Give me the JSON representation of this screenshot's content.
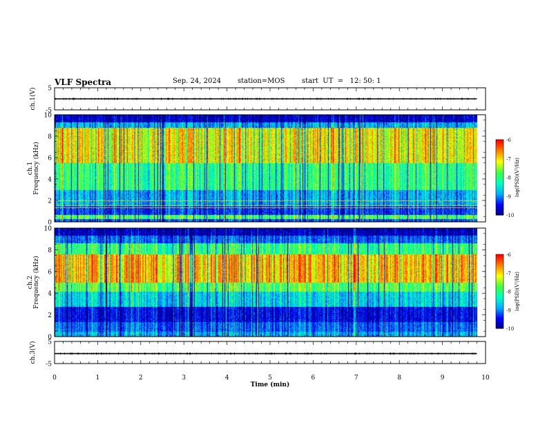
{
  "header": {
    "title": "VLF Spectra",
    "date": "Sep. 24, 2024",
    "station": "station=MOS",
    "start": "start  UT  =   12: 50: 1"
  },
  "colors": {
    "colormap": [
      "#000080",
      "#0000ff",
      "#00b0ff",
      "#00ffc0",
      "#40ff40",
      "#ffff00",
      "#ff8000",
      "#ff0000",
      "#ffffff"
    ]
  },
  "chart_data": [
    {
      "type": "line",
      "name": "ch1-voltage",
      "ylabel": "ch.1(V)",
      "ylim": [
        -5,
        5
      ],
      "yticks": [
        "5",
        "-5"
      ],
      "x": [
        0,
        9.8
      ],
      "y": [
        0,
        0
      ]
    },
    {
      "type": "heatmap",
      "name": "ch1-spectrogram",
      "ylabel": "ch.1\nFrequency (kHz)",
      "ylim": [
        0,
        10
      ],
      "yticks": [
        "10",
        "8",
        "6",
        "4",
        "2",
        "0"
      ],
      "x_range_min": [
        0,
        9.8
      ],
      "bands_khz": [
        {
          "from": 0,
          "to": 0.3,
          "level": 0.2
        },
        {
          "from": 0.3,
          "to": 0.7,
          "level": 0.55
        },
        {
          "from": 0.7,
          "to": 1.5,
          "level": 0.18
        },
        {
          "from": 1.5,
          "to": 3.0,
          "level": 0.3
        },
        {
          "from": 3.0,
          "to": 5.5,
          "level": 0.5
        },
        {
          "from": 5.5,
          "to": 8.8,
          "level": 0.72
        },
        {
          "from": 8.8,
          "to": 9.3,
          "level": 0.3
        },
        {
          "from": 9.3,
          "to": 10,
          "level": 0.08
        }
      ],
      "colorbar": {
        "label": "log(PSD)(V²/Hz)",
        "ticks": [
          "-6",
          "-7",
          "-8",
          "-9",
          "-10"
        ],
        "range": [
          -10,
          -6
        ]
      }
    },
    {
      "type": "heatmap",
      "name": "ch2-spectrogram",
      "ylabel": "ch.2\nFrequency (kHz)",
      "ylim": [
        0,
        10
      ],
      "yticks": [
        "10",
        "8",
        "6",
        "4",
        "2",
        "0"
      ],
      "x_range_min": [
        0,
        9.8
      ],
      "bands_khz": [
        {
          "from": 0,
          "to": 0.5,
          "level": 0.3
        },
        {
          "from": 0.5,
          "to": 1.4,
          "level": 0.22
        },
        {
          "from": 1.4,
          "to": 2.8,
          "level": 0.12
        },
        {
          "from": 2.8,
          "to": 4.2,
          "level": 0.35
        },
        {
          "from": 4.2,
          "to": 5.0,
          "level": 0.55
        },
        {
          "from": 5.0,
          "to": 7.6,
          "level": 0.78
        },
        {
          "from": 7.6,
          "to": 8.6,
          "level": 0.5
        },
        {
          "from": 8.6,
          "to": 9.3,
          "level": 0.22
        },
        {
          "from": 9.3,
          "to": 10,
          "level": 0.06
        }
      ],
      "colorbar": {
        "label": "log(PSD)(V²/Hz)",
        "ticks": [
          "-6",
          "-7",
          "-8",
          "-9",
          "-10"
        ],
        "range": [
          -10,
          -6
        ]
      }
    },
    {
      "type": "line",
      "name": "ch3-voltage",
      "ylabel": "ch.3(V)",
      "ylim": [
        -5,
        5
      ],
      "yticks": [
        "5",
        "-5"
      ],
      "x": [
        0,
        9.8
      ],
      "y": [
        -0.5,
        -0.5
      ]
    }
  ],
  "xaxis": {
    "label": "Time (min)",
    "ticks": [
      "0",
      "1",
      "2",
      "3",
      "4",
      "5",
      "6",
      "7",
      "8",
      "9",
      "10"
    ],
    "range": [
      0,
      10
    ]
  }
}
